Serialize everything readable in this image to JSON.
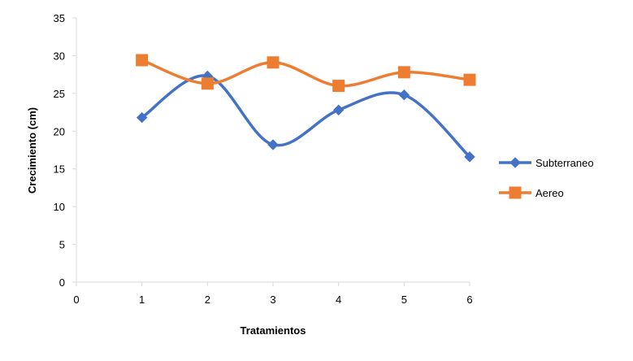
{
  "chart_data": {
    "type": "line",
    "title": "",
    "xlabel": "Tratamientos",
    "ylabel": "Crecimiento (cm)",
    "xlim": [
      0,
      6
    ],
    "ylim": [
      0,
      35
    ],
    "x_ticks": [
      0,
      1,
      2,
      3,
      4,
      5,
      6
    ],
    "y_ticks": [
      0,
      5,
      10,
      15,
      20,
      25,
      30,
      35
    ],
    "grid": false,
    "smooth": true,
    "legend_position": "right",
    "series": [
      {
        "name": "Subterraneo",
        "marker": "diamond",
        "color": "#4472C4",
        "x": [
          1,
          2,
          3,
          4,
          5,
          6
        ],
        "y": [
          21.8,
          27.3,
          18.2,
          22.8,
          24.8,
          16.6
        ]
      },
      {
        "name": "Aereo",
        "marker": "square",
        "color": "#ED7D31",
        "x": [
          1,
          2,
          3,
          4,
          5,
          6
        ],
        "y": [
          29.4,
          26.3,
          29.1,
          26.0,
          27.8,
          26.8
        ]
      }
    ]
  }
}
